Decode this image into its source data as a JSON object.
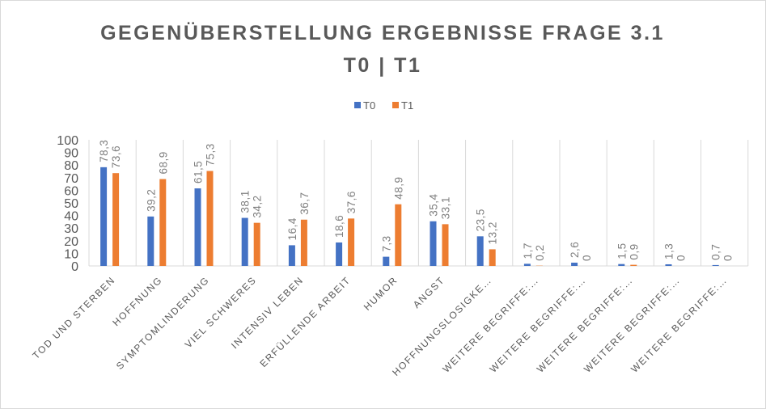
{
  "chart_data": {
    "type": "bar",
    "title": "GEGENÜBERSTELLUNG ERGEBNISSE FRAGE 3.1",
    "subtitle": "T0 | T1",
    "categories": [
      "TOD UND STERBEN",
      "HOFFNUNG",
      "SYMPTOMLINDERUNG",
      "VIEL SCHWERES",
      "INTENSIV LEBEN",
      "ERFÜLLENDE ARBEIT",
      "HUMOR",
      "ANGST",
      "HOFFNUNGSLOSIGKE…",
      "WEITERE BEGRIFFE:…",
      "WEITERE BEGRIFFE:…",
      "WEITERE BEGRIFFE:…",
      "WEITERE BEGRIFFE:…",
      "WEITERE BEGRIFFE:…"
    ],
    "series": [
      {
        "name": "T0",
        "color": "#4472c4",
        "values": [
          78.3,
          39.2,
          61.5,
          38.1,
          16.4,
          18.6,
          7.3,
          35.4,
          23.5,
          1.7,
          2.6,
          1.5,
          1.3,
          0.7
        ],
        "labels": [
          "78,3",
          "39,2",
          "61,5",
          "38,1",
          "16,4",
          "18,6",
          "7,3",
          "35,4",
          "23,5",
          "1,7",
          "2,6",
          "1,5",
          "1,3",
          "0,7"
        ]
      },
      {
        "name": "T1",
        "color": "#ed7d31",
        "values": [
          73.6,
          68.9,
          75.3,
          34.2,
          36.7,
          37.6,
          48.9,
          33.1,
          13.2,
          0.2,
          0,
          0.9,
          0,
          0
        ],
        "labels": [
          "73,6",
          "68,9",
          "75,3",
          "34,2",
          "36,7",
          "37,6",
          "48,9",
          "33,1",
          "13,2",
          "0,2",
          "0",
          "0,9",
          "0",
          "0"
        ]
      }
    ],
    "ylim": [
      0,
      100
    ],
    "yticks": [
      0,
      10,
      20,
      30,
      40,
      50,
      60,
      70,
      80,
      90,
      100
    ],
    "xlabel": "",
    "ylabel": "",
    "legend": "top-center",
    "grid": "vertical category separators"
  }
}
